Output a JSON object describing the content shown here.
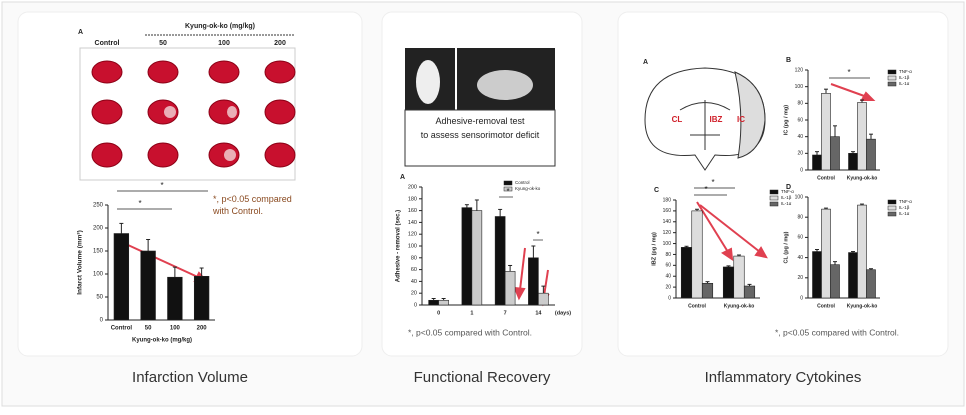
{
  "panels": [
    {
      "caption": "Infarction Volume",
      "figure_label": "A",
      "group_header": "Kyung-ok-ko (mg/kg)",
      "column_labels": [
        "Control",
        "50",
        "100",
        "200"
      ],
      "note": "*, p<0.05 compared with Control.",
      "chart_data": {
        "type": "bar",
        "y_label": "Infarct Volume (mm³)",
        "x_label": "Kyung-ok-ko (mg/kg)",
        "categories": [
          "Control",
          "50",
          "100",
          "200"
        ],
        "values": [
          188,
          150,
          93,
          95
        ],
        "errors": [
          22,
          25,
          22,
          18
        ],
        "color": "#111111",
        "ylim": [
          0,
          250
        ],
        "yticks": [
          0,
          50,
          100,
          150,
          200,
          250
        ],
        "annotations": [
          "*",
          "*"
        ]
      }
    },
    {
      "caption": "Functional Recovery",
      "image_caption": "Adhesive-removal test to assess sensorimotor deficit",
      "note": "*, p<0.05 compared with Control.",
      "chart_data": {
        "type": "bar",
        "label": "A",
        "y_label": "Adhesive - removal (sec.)",
        "x_label": "(days)",
        "categories": [
          "0",
          "1",
          "7",
          "14"
        ],
        "series": [
          {
            "name": "Control",
            "color": "#111111",
            "values": [
              8,
              165,
              150,
              80
            ],
            "errors": [
              3,
              5,
              12,
              20
            ]
          },
          {
            "name": "Kyung-ok-ko",
            "color": "#cccccc",
            "values": [
              8,
              160,
              57,
              20
            ],
            "errors": [
              3,
              18,
              10,
              12
            ]
          }
        ],
        "ylim": [
          0,
          200
        ],
        "yticks": [
          0,
          20,
          40,
          60,
          80,
          100,
          120,
          140,
          160,
          180,
          200
        ],
        "annotations": [
          "*",
          "*"
        ]
      }
    },
    {
      "caption": "Inflammatory Cytokines",
      "diagram_label": "A",
      "region_labels": [
        "CL",
        "IBZ",
        "IC"
      ],
      "note": "*, p<0.05 compared with Control.",
      "chart_data": [
        {
          "type": "bar",
          "label": "B",
          "y_label": "IC (pg / mg)",
          "categories": [
            "Control",
            "Kyung-ok-ko"
          ],
          "series": [
            {
              "name": "TNF-α",
              "color": "#111111",
              "values": [
                18,
                20
              ],
              "errors": [
                4,
                2
              ]
            },
            {
              "name": "IL-1β",
              "color": "#dddddd",
              "values": [
                92,
                81
              ],
              "errors": [
                5,
                3
              ]
            },
            {
              "name": "IL-1α",
              "color": "#666666",
              "values": [
                40,
                37
              ],
              "errors": [
                13,
                6
              ]
            }
          ],
          "ylim": [
            0,
            120
          ],
          "yticks": [
            0,
            20,
            40,
            60,
            80,
            100,
            120
          ],
          "annotations": [
            "*"
          ]
        },
        {
          "type": "bar",
          "label": "C",
          "y_label": "IBZ (pg / mg)",
          "categories": [
            "Control",
            "Kyung-ok-ko"
          ],
          "series": [
            {
              "name": "TNF-α",
              "color": "#111111",
              "values": [
                93,
                57
              ],
              "errors": [
                2,
                2
              ]
            },
            {
              "name": "IL-1β",
              "color": "#dddddd",
              "values": [
                160,
                77
              ],
              "errors": [
                3,
                2
              ]
            },
            {
              "name": "IL-1α",
              "color": "#666666",
              "values": [
                27,
                22
              ],
              "errors": [
                3,
                3
              ]
            }
          ],
          "ylim": [
            0,
            180
          ],
          "yticks": [
            0,
            20,
            40,
            60,
            80,
            100,
            120,
            140,
            160,
            180
          ],
          "annotations": [
            "*",
            "*"
          ]
        },
        {
          "type": "bar",
          "label": "D",
          "y_label": "CL (pg / mg)",
          "categories": [
            "Control",
            "Kyung-ok-ko"
          ],
          "series": [
            {
              "name": "TNF-α",
              "color": "#111111",
              "values": [
                46,
                45
              ],
              "errors": [
                2,
                1
              ]
            },
            {
              "name": "IL-1β",
              "color": "#dddddd",
              "values": [
                88,
                92
              ],
              "errors": [
                1,
                1
              ]
            },
            {
              "name": "IL-1α",
              "color": "#666666",
              "values": [
                33,
                28
              ],
              "errors": [
                3,
                1
              ]
            }
          ],
          "ylim": [
            0,
            100
          ],
          "yticks": [
            0,
            20,
            40,
            60,
            80,
            100
          ],
          "annotations": []
        }
      ]
    }
  ]
}
